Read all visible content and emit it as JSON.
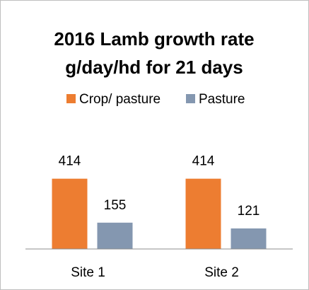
{
  "chart_data": {
    "type": "bar",
    "title": [
      "2016 Lamb growth rate",
      "g/day/hd for 21 days"
    ],
    "categories": [
      "Site 1",
      "Site 2"
    ],
    "series": [
      {
        "name": "Crop/ pasture",
        "color": "#ed7d31",
        "values": [
          414,
          414
        ]
      },
      {
        "name": "Pasture",
        "color": "#8497b0",
        "values": [
          155,
          121
        ]
      }
    ],
    "ylim": [
      0,
      600
    ],
    "legend": "top"
  }
}
